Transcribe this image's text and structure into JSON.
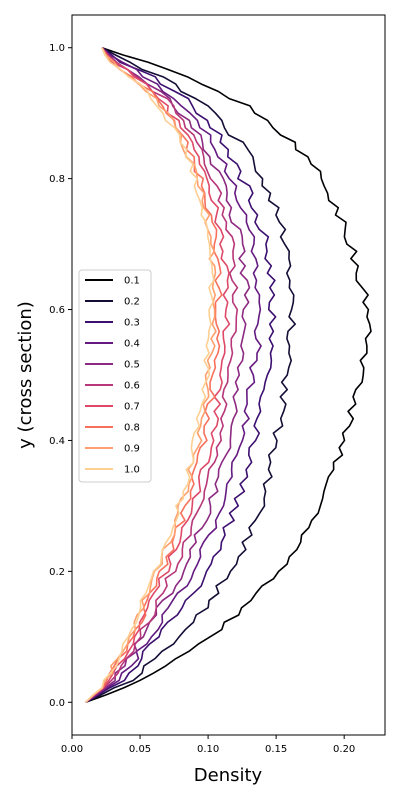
{
  "chart_data": {
    "type": "line",
    "xlabel": "Density",
    "ylabel": "y (cross section)",
    "xlim": [
      0.0,
      0.23
    ],
    "ylim": [
      -0.05,
      1.05
    ],
    "x_ticks": [
      "0.00",
      "0.05",
      "0.10",
      "0.15",
      "0.20"
    ],
    "y_ticks": [
      "0.0",
      "0.2",
      "0.4",
      "0.6",
      "0.8",
      "1.0"
    ],
    "grid": false,
    "legend_position": "center-left",
    "series": [
      {
        "name": "0.1",
        "color": "#000004",
        "peak_density": 0.218,
        "start_density": 0.01,
        "top_density": 0.022,
        "points": [
          [
            0.01,
            0.0
          ],
          [
            0.05,
            0.03
          ],
          [
            0.09,
            0.08
          ],
          [
            0.13,
            0.15
          ],
          [
            0.16,
            0.22
          ],
          [
            0.185,
            0.3
          ],
          [
            0.2,
            0.4
          ],
          [
            0.212,
            0.5
          ],
          [
            0.218,
            0.55
          ],
          [
            0.215,
            0.62
          ],
          [
            0.205,
            0.7
          ],
          [
            0.185,
            0.8
          ],
          [
            0.16,
            0.86
          ],
          [
            0.13,
            0.91
          ],
          [
            0.09,
            0.95
          ],
          [
            0.05,
            0.98
          ],
          [
            0.022,
            1.0
          ]
        ]
      },
      {
        "name": "0.2",
        "color": "#140e36",
        "peak_density": 0.162,
        "start_density": 0.01,
        "top_density": 0.022,
        "points": [
          [
            0.01,
            0.0
          ],
          [
            0.04,
            0.03
          ],
          [
            0.07,
            0.08
          ],
          [
            0.1,
            0.15
          ],
          [
            0.125,
            0.23
          ],
          [
            0.142,
            0.32
          ],
          [
            0.152,
            0.42
          ],
          [
            0.158,
            0.52
          ],
          [
            0.162,
            0.6
          ],
          [
            0.158,
            0.7
          ],
          [
            0.145,
            0.78
          ],
          [
            0.125,
            0.85
          ],
          [
            0.1,
            0.91
          ],
          [
            0.07,
            0.95
          ],
          [
            0.04,
            0.98
          ],
          [
            0.022,
            1.0
          ]
        ]
      },
      {
        "name": "0.3",
        "color": "#3b0f70",
        "peak_density": 0.148,
        "start_density": 0.01,
        "top_density": 0.022,
        "points": [
          [
            0.01,
            0.0
          ],
          [
            0.035,
            0.03
          ],
          [
            0.06,
            0.09
          ],
          [
            0.09,
            0.17
          ],
          [
            0.113,
            0.26
          ],
          [
            0.13,
            0.36
          ],
          [
            0.14,
            0.46
          ],
          [
            0.147,
            0.56
          ],
          [
            0.148,
            0.62
          ],
          [
            0.143,
            0.7
          ],
          [
            0.13,
            0.78
          ],
          [
            0.11,
            0.86
          ],
          [
            0.085,
            0.92
          ],
          [
            0.055,
            0.96
          ],
          [
            0.035,
            0.98
          ],
          [
            0.022,
            1.0
          ]
        ]
      },
      {
        "name": "0.4",
        "color": "#641a80",
        "peak_density": 0.138,
        "start_density": 0.01,
        "top_density": 0.022,
        "points": [
          [
            0.01,
            0.0
          ],
          [
            0.032,
            0.03
          ],
          [
            0.055,
            0.09
          ],
          [
            0.083,
            0.18
          ],
          [
            0.105,
            0.27
          ],
          [
            0.121,
            0.37
          ],
          [
            0.131,
            0.47
          ],
          [
            0.137,
            0.56
          ],
          [
            0.138,
            0.62
          ],
          [
            0.133,
            0.7
          ],
          [
            0.121,
            0.78
          ],
          [
            0.102,
            0.86
          ],
          [
            0.078,
            0.92
          ],
          [
            0.052,
            0.96
          ],
          [
            0.033,
            0.98
          ],
          [
            0.022,
            1.0
          ]
        ]
      },
      {
        "name": "0.5",
        "color": "#8c2981",
        "peak_density": 0.128,
        "start_density": 0.01,
        "top_density": 0.022,
        "points": [
          [
            0.01,
            0.0
          ],
          [
            0.03,
            0.03
          ],
          [
            0.052,
            0.1
          ],
          [
            0.078,
            0.19
          ],
          [
            0.098,
            0.28
          ],
          [
            0.113,
            0.38
          ],
          [
            0.122,
            0.48
          ],
          [
            0.127,
            0.56
          ],
          [
            0.128,
            0.63
          ],
          [
            0.123,
            0.71
          ],
          [
            0.112,
            0.79
          ],
          [
            0.095,
            0.86
          ],
          [
            0.073,
            0.92
          ],
          [
            0.049,
            0.96
          ],
          [
            0.031,
            0.98
          ],
          [
            0.022,
            1.0
          ]
        ]
      },
      {
        "name": "0.6",
        "color": "#b73779",
        "peak_density": 0.12,
        "start_density": 0.01,
        "top_density": 0.022,
        "points": [
          [
            0.01,
            0.0
          ],
          [
            0.028,
            0.03
          ],
          [
            0.05,
            0.1
          ],
          [
            0.074,
            0.2
          ],
          [
            0.093,
            0.29
          ],
          [
            0.107,
            0.39
          ],
          [
            0.115,
            0.49
          ],
          [
            0.119,
            0.57
          ],
          [
            0.12,
            0.63
          ],
          [
            0.116,
            0.71
          ],
          [
            0.106,
            0.79
          ],
          [
            0.09,
            0.86
          ],
          [
            0.069,
            0.92
          ],
          [
            0.047,
            0.96
          ],
          [
            0.03,
            0.98
          ],
          [
            0.022,
            1.0
          ]
        ]
      },
      {
        "name": "0.7",
        "color": "#de4968",
        "peak_density": 0.114,
        "start_density": 0.01,
        "top_density": 0.022,
        "points": [
          [
            0.01,
            0.0
          ],
          [
            0.027,
            0.03
          ],
          [
            0.048,
            0.11
          ],
          [
            0.071,
            0.21
          ],
          [
            0.089,
            0.3
          ],
          [
            0.102,
            0.4
          ],
          [
            0.11,
            0.5
          ],
          [
            0.113,
            0.57
          ],
          [
            0.114,
            0.63
          ],
          [
            0.11,
            0.71
          ],
          [
            0.101,
            0.79
          ],
          [
            0.086,
            0.86
          ],
          [
            0.066,
            0.92
          ],
          [
            0.045,
            0.96
          ],
          [
            0.029,
            0.98
          ],
          [
            0.022,
            1.0
          ]
        ]
      },
      {
        "name": "0.8",
        "color": "#f7705c",
        "peak_density": 0.108,
        "start_density": 0.01,
        "top_density": 0.022,
        "points": [
          [
            0.01,
            0.0
          ],
          [
            0.026,
            0.03
          ],
          [
            0.047,
            0.11
          ],
          [
            0.069,
            0.21
          ],
          [
            0.086,
            0.31
          ],
          [
            0.098,
            0.41
          ],
          [
            0.105,
            0.5
          ],
          [
            0.108,
            0.57
          ],
          [
            0.108,
            0.63
          ],
          [
            0.105,
            0.71
          ],
          [
            0.096,
            0.79
          ],
          [
            0.082,
            0.86
          ],
          [
            0.063,
            0.92
          ],
          [
            0.043,
            0.96
          ],
          [
            0.028,
            0.98
          ],
          [
            0.022,
            1.0
          ]
        ]
      },
      {
        "name": "0.9",
        "color": "#fe9f6d",
        "peak_density": 0.104,
        "start_density": 0.01,
        "top_density": 0.022,
        "points": [
          [
            0.01,
            0.0
          ],
          [
            0.025,
            0.03
          ],
          [
            0.046,
            0.12
          ],
          [
            0.067,
            0.22
          ],
          [
            0.083,
            0.32
          ],
          [
            0.095,
            0.42
          ],
          [
            0.101,
            0.51
          ],
          [
            0.104,
            0.58
          ],
          [
            0.104,
            0.64
          ],
          [
            0.101,
            0.72
          ],
          [
            0.093,
            0.8
          ],
          [
            0.079,
            0.87
          ],
          [
            0.061,
            0.92
          ],
          [
            0.041,
            0.96
          ],
          [
            0.027,
            0.98
          ],
          [
            0.022,
            1.0
          ]
        ]
      },
      {
        "name": "1.0",
        "color": "#fecf92",
        "peak_density": 0.102,
        "start_density": 0.01,
        "top_density": 0.022,
        "points": [
          [
            0.01,
            0.0
          ],
          [
            0.025,
            0.03
          ],
          [
            0.045,
            0.12
          ],
          [
            0.066,
            0.22
          ],
          [
            0.082,
            0.32
          ],
          [
            0.093,
            0.42
          ],
          [
            0.099,
            0.51
          ],
          [
            0.102,
            0.58
          ],
          [
            0.102,
            0.64
          ],
          [
            0.099,
            0.72
          ],
          [
            0.091,
            0.8
          ],
          [
            0.078,
            0.87
          ],
          [
            0.06,
            0.92
          ],
          [
            0.04,
            0.96
          ],
          [
            0.026,
            0.98
          ],
          [
            0.022,
            1.0
          ]
        ]
      }
    ]
  }
}
